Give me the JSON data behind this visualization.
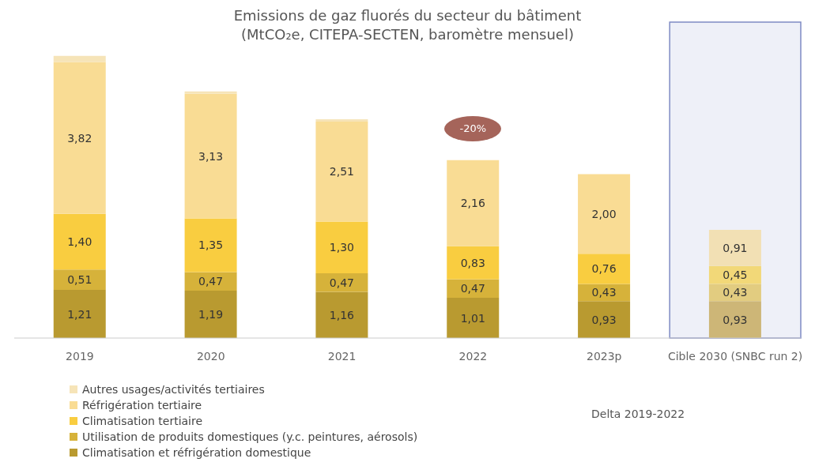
{
  "chart_data": {
    "type": "bar",
    "stacked": true,
    "title": "Emissions de gaz fluorés du secteur du bâtiment",
    "subtitle": "(MtCO₂e, CITEPA-SECTEN, baromètre mensuel)",
    "categories": [
      "2019",
      "2020",
      "2021",
      "2022",
      "2023p",
      "Cible 2030 (SNBC run 2)"
    ],
    "series": [
      {
        "name": "Climatisation et réfrigération domestique",
        "color": "#b99a30",
        "colors": [
          "#b99a30",
          "#b99a30",
          "#b99a30",
          "#b99a30",
          "#b99a30",
          "#cdb677"
        ],
        "values": [
          1.21,
          1.19,
          1.16,
          1.01,
          0.93,
          0.93
        ],
        "value_labels": [
          "1,21",
          "1,19",
          "1,16",
          "1,01",
          "0,93",
          "0,93"
        ]
      },
      {
        "name": "Utilisation de produits domestiques (y.c. peintures, aérosols)",
        "color": "#d6b23a",
        "colors": [
          "#d6b23a",
          "#d6b23a",
          "#d6b23a",
          "#d6b23a",
          "#d6b23a",
          "#e2cc80"
        ],
        "values": [
          0.51,
          0.47,
          0.47,
          0.47,
          0.43,
          0.43
        ],
        "value_labels": [
          "0,51",
          "0,47",
          "0,47",
          "0,47",
          "0,43",
          "0,43"
        ]
      },
      {
        "name": "Climatisation tertiaire",
        "color": "#f9cd40",
        "colors": [
          "#f9cd40",
          "#f9cd40",
          "#f9cd40",
          "#f9cd40",
          "#f9cd40",
          "#f2d878"
        ],
        "values": [
          1.4,
          1.35,
          1.3,
          0.83,
          0.76,
          0.45
        ],
        "value_labels": [
          "1,40",
          "1,35",
          "1,30",
          "0,83",
          "0,76",
          "0,45"
        ]
      },
      {
        "name": "Réfrigération tertiaire",
        "color": "#f9dc94",
        "colors": [
          "#f9dc94",
          "#f9dc94",
          "#f9dc94",
          "#f9dc94",
          "#f9dc94",
          "#f2e0b4"
        ],
        "values": [
          3.82,
          3.13,
          2.51,
          2.16,
          2.0,
          0.91
        ],
        "value_labels": [
          "3,82",
          "3,13",
          "2,51",
          "2,16",
          "2,00",
          "0,91"
        ]
      },
      {
        "name": "Autres usages/activités tertiaires",
        "color": "#f6e4b8",
        "values": [
          0.15,
          0.06,
          0.06,
          0,
          0,
          0
        ],
        "value_labels": [
          null,
          null,
          null,
          null,
          null,
          null
        ]
      }
    ],
    "bands": [
      {
        "axis": "x",
        "from": "Cible 2030 (SNBC run 2)",
        "to": "Cible 2030 (SNBC run 2)",
        "color": "#eef0f8"
      }
    ],
    "annotations": [
      "-20%",
      "Delta 2019-2022"
    ],
    "legend": "bottom left"
  }
}
